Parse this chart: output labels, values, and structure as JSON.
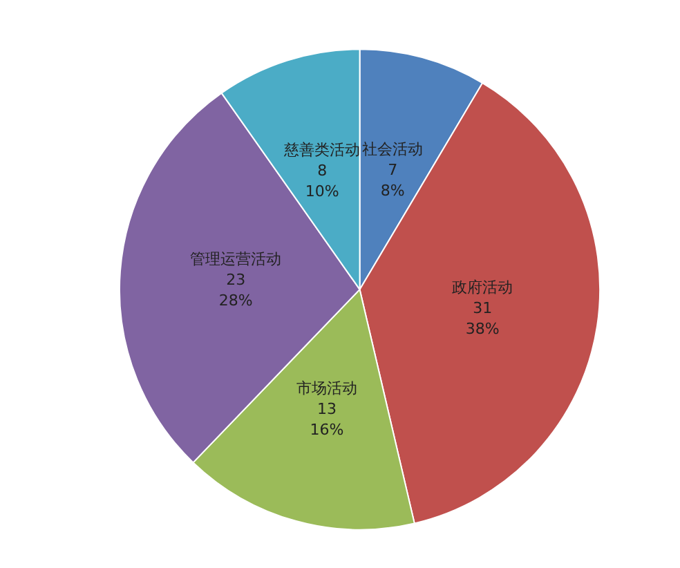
{
  "chart_data": {
    "type": "pie",
    "categories": [
      "社会活动",
      "政府活动",
      "市场活动",
      "管理运营活动",
      "慈善类活动"
    ],
    "values": [
      7,
      31,
      13,
      23,
      8
    ],
    "colors": [
      "#4f81bd",
      "#c0504d",
      "#9bbb59",
      "#8064a2",
      "#4bacc6"
    ],
    "value_labels": [
      "7\n8%",
      "31\n38%",
      "13\n16%",
      "23\n28%",
      "8\n10%"
    ]
  }
}
